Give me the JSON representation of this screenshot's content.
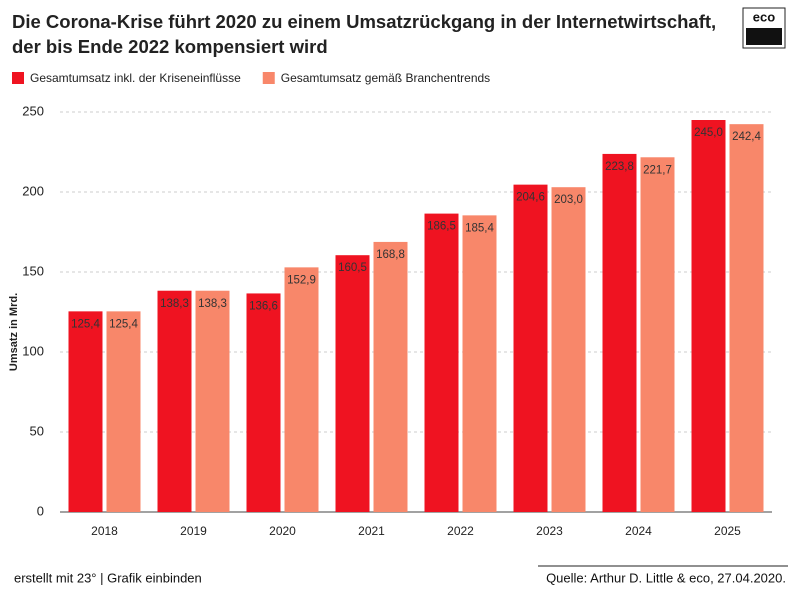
{
  "chart_data": {
    "type": "bar",
    "title": "Die Corona-Krise führt 2020 zu einem Umsatzrückgang in der Internetwirtschaft, der bis Ende 2022 kompensiert wird",
    "logo": "eco",
    "y_label": "Umsatz in Mrd.",
    "categories": [
      "2018",
      "2019",
      "2020",
      "2021",
      "2022",
      "2023",
      "2024",
      "2025"
    ],
    "series": [
      {
        "name": "Gesamtumsatz inkl. der Kriseneinflüsse",
        "color": "#ef1321",
        "values": [
          125.4,
          138.3,
          136.6,
          160.5,
          186.5,
          204.6,
          223.8,
          245.0
        ],
        "value_labels": [
          "125,4",
          "138,3",
          "136,6",
          "160,5",
          "186,5",
          "204,6",
          "223,8",
          "245,0"
        ]
      },
      {
        "name": "Gesamtumsatz gemäß Branchentrends",
        "color": "#f8876a",
        "values": [
          125.4,
          138.3,
          152.9,
          168.8,
          185.4,
          203.0,
          221.7,
          242.4
        ],
        "value_labels": [
          "125,4",
          "138,3",
          "152,9",
          "168,8",
          "185,4",
          "203,0",
          "221,7",
          "242,4"
        ]
      }
    ],
    "ylim": [
      0,
      250
    ],
    "yticks": [
      0,
      50,
      100,
      150,
      200,
      250
    ],
    "grid": true,
    "footer_left": "erstellt mit 23° | Grafik einbinden",
    "source": "Quelle: Arthur D. Little & eco, 27.04.2020."
  }
}
